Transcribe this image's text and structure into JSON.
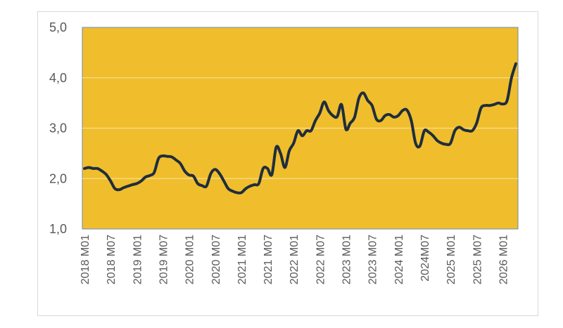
{
  "chart_data": {
    "type": "line",
    "title": "",
    "xlabel": "",
    "ylabel": "",
    "ylim": [
      1.0,
      5.0
    ],
    "yticks": [
      "1,0",
      "2,0",
      "3,0",
      "4,0",
      "5,0"
    ],
    "ytick_values": [
      1.0,
      2.0,
      3.0,
      4.0,
      5.0
    ],
    "xticks": [
      "2018 M01",
      "2018 M07",
      "2019 M01",
      "2019 M07",
      "2020 M01",
      "2020 M07",
      "2021 M01",
      "2021 M07",
      "2022 M01",
      "2022 M07",
      "2023 M01",
      "2023 M07",
      "2024 M01",
      "2024M07",
      "2025 M01",
      "2025 M07",
      "2026 M01"
    ],
    "grid": true,
    "legend": "none",
    "colors": {
      "plot_background": "#f0be2c",
      "line": "#1f2d3d",
      "gridline": "#f6dd8f"
    },
    "series": [
      {
        "x": [
          "2018-01",
          "2018-02",
          "2018-03",
          "2018-04",
          "2018-05",
          "2018-06",
          "2018-07",
          "2018-08",
          "2018-09",
          "2018-10",
          "2018-11",
          "2018-12",
          "2019-01",
          "2019-02",
          "2019-03",
          "2019-04",
          "2019-05",
          "2019-06",
          "2019-07",
          "2019-08",
          "2019-09",
          "2019-10",
          "2019-11",
          "2019-12",
          "2020-01",
          "2020-02",
          "2020-03",
          "2020-04",
          "2020-05",
          "2020-06",
          "2020-07",
          "2020-08",
          "2020-09",
          "2020-10",
          "2020-11",
          "2020-12",
          "2021-01",
          "2021-02",
          "2021-03",
          "2021-04",
          "2021-05",
          "2021-06",
          "2021-07",
          "2021-08",
          "2021-09",
          "2021-10",
          "2021-11",
          "2021-12",
          "2022-01",
          "2022-02",
          "2022-03",
          "2022-04",
          "2022-05",
          "2022-06",
          "2022-07",
          "2022-08",
          "2022-09",
          "2022-10",
          "2022-11",
          "2022-12",
          "2023-01",
          "2023-02",
          "2023-03",
          "2023-04",
          "2023-05",
          "2023-06",
          "2023-07",
          "2023-08",
          "2023-09",
          "2023-10",
          "2023-11",
          "2023-12",
          "2024-01",
          "2024-02",
          "2024-03",
          "2024-04",
          "2024-05",
          "2024-06",
          "2024-07",
          "2024-08",
          "2024-09",
          "2024-10",
          "2024-11",
          "2024-12",
          "2025-01",
          "2025-02",
          "2025-03",
          "2025-04",
          "2025-05",
          "2025-06",
          "2025-07",
          "2025-08",
          "2025-09",
          "2025-10",
          "2025-11",
          "2025-12",
          "2026-01",
          "2026-02",
          "2026-03",
          "2026-04"
        ],
        "values": [
          2.2,
          2.22,
          2.2,
          2.2,
          2.15,
          2.08,
          1.95,
          1.8,
          1.78,
          1.82,
          1.85,
          1.88,
          1.9,
          1.95,
          2.03,
          2.06,
          2.12,
          2.4,
          2.45,
          2.44,
          2.43,
          2.37,
          2.3,
          2.15,
          2.07,
          2.05,
          1.9,
          1.86,
          1.85,
          2.1,
          2.18,
          2.1,
          1.95,
          1.8,
          1.75,
          1.72,
          1.72,
          1.8,
          1.85,
          1.88,
          1.9,
          2.2,
          2.2,
          2.08,
          2.62,
          2.5,
          2.22,
          2.55,
          2.7,
          2.95,
          2.85,
          2.95,
          2.95,
          3.15,
          3.3,
          3.52,
          3.35,
          3.25,
          3.23,
          3.47,
          2.98,
          3.1,
          3.22,
          3.6,
          3.7,
          3.55,
          3.45,
          3.18,
          3.15,
          3.25,
          3.27,
          3.22,
          3.25,
          3.35,
          3.36,
          3.15,
          2.7,
          2.65,
          2.95,
          2.92,
          2.85,
          2.75,
          2.7,
          2.68,
          2.7,
          2.95,
          3.02,
          2.97,
          2.95,
          2.95,
          3.1,
          3.4,
          3.45,
          3.45,
          3.47,
          3.5,
          3.48,
          3.55,
          4.0,
          4.28
        ]
      }
    ]
  }
}
